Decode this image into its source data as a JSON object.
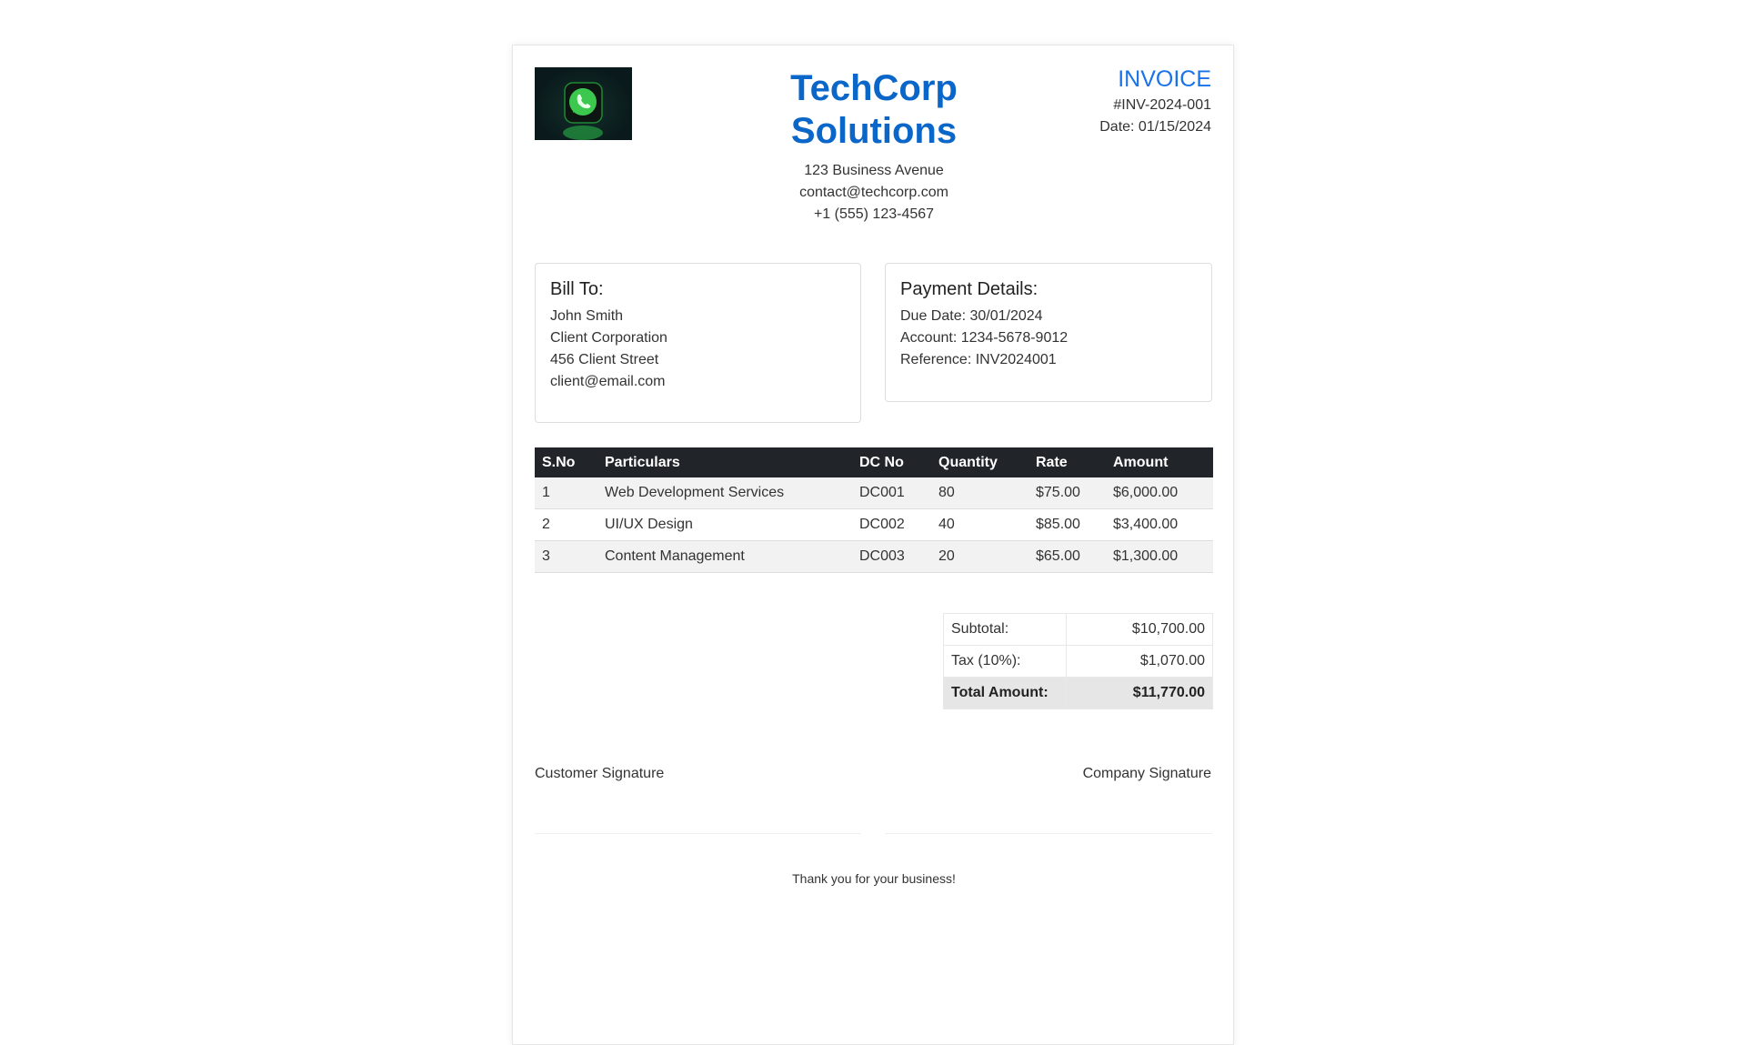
{
  "company": {
    "logo_icon": "whatsapp-phone-icon",
    "name_line1": "TechCorp",
    "name_line2": "Solutions",
    "address": "123 Business Avenue",
    "email": "contact@techcorp.com",
    "phone": "+1 (555) 123-4567",
    "brand_color": "#0b66c9"
  },
  "invoice": {
    "heading": "INVOICE",
    "number": "#INV-2024-001",
    "date": "Date: 01/15/2024",
    "accent_color": "#1a73e8"
  },
  "bill_to": {
    "heading": "Bill To:",
    "lines": [
      "John Smith",
      "Client Corporation",
      "456 Client Street",
      "client@email.com"
    ]
  },
  "payment": {
    "heading": "Payment Details:",
    "lines": [
      "Due Date: 30/01/2024",
      "Account: 1234-5678-9012",
      "Reference: INV2024001"
    ]
  },
  "items": {
    "columns": [
      "S.No",
      "Particulars",
      "DC No",
      "Quantity",
      "Rate",
      "Amount"
    ],
    "rows": [
      [
        "1",
        "Web Development Services",
        "DC001",
        "80",
        "$75.00",
        "$6,000.00"
      ],
      [
        "2",
        "UI/UX Design",
        "DC002",
        "40",
        "$85.00",
        "$3,400.00"
      ],
      [
        "3",
        "Content Management",
        "DC003",
        "20",
        "$65.00",
        "$1,300.00"
      ]
    ]
  },
  "totals": {
    "subtotal_label": "Subtotal:",
    "subtotal": "$10,700.00",
    "tax_label": "Tax (10%):",
    "tax": "$1,070.00",
    "total_label": "Total Amount:",
    "total": "$11,770.00"
  },
  "signatures": {
    "customer": "Customer Signature",
    "company": "Company Signature"
  },
  "footer": {
    "thanks": "Thank you for your business!"
  }
}
